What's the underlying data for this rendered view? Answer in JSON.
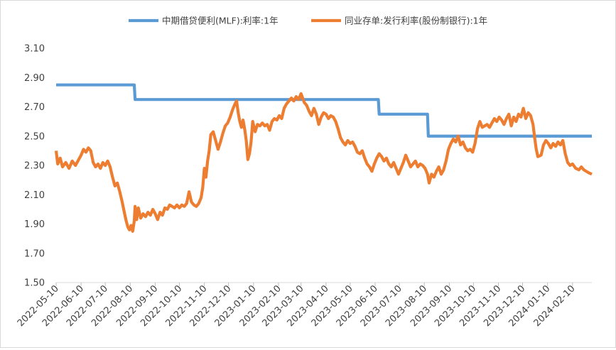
{
  "chart_data": {
    "type": "line",
    "title": "",
    "xlabel": "",
    "ylabel": "",
    "ylim": [
      1.5,
      3.1
    ],
    "yticks": [
      "1.50",
      "1.70",
      "1.90",
      "2.10",
      "2.30",
      "2.50",
      "2.70",
      "2.90",
      "3.10"
    ],
    "xticks": [
      "2022-05-10",
      "2022-06-10",
      "2022-07-10",
      "2022-08-10",
      "2022-09-10",
      "2022-10-10",
      "2022-11-10",
      "2022-12-10",
      "2023-01-10",
      "2023-02-10",
      "2023-03-10",
      "2023-04-10",
      "2023-05-10",
      "2023-06-10",
      "2023-07-10",
      "2023-08-10",
      "2023-09-10",
      "2023-10-10",
      "2023-11-10",
      "2023-12-10",
      "2024-01-10",
      "2024-02-10"
    ],
    "xlim": [
      "2022-05-10",
      "2024-03-05"
    ],
    "grid": false,
    "legend_position": "top",
    "series": [
      {
        "name": "中期借贷便利(MLF):利率:1年",
        "color": "#5B9BD5",
        "points": [
          [
            "2022-05-10",
            2.85
          ],
          [
            "2022-08-15",
            2.85
          ],
          [
            "2022-08-16",
            2.75
          ],
          [
            "2023-06-14",
            2.75
          ],
          [
            "2023-06-15",
            2.65
          ],
          [
            "2023-08-14",
            2.65
          ],
          [
            "2023-08-15",
            2.5
          ],
          [
            "2024-03-05",
            2.5
          ]
        ]
      },
      {
        "name": "同业存单:发行利率(股份制银行):1年",
        "color": "#ED7D31",
        "points": [
          [
            "2022-05-10",
            2.4
          ],
          [
            "2022-05-12",
            2.31
          ],
          [
            "2022-05-15",
            2.35
          ],
          [
            "2022-05-18",
            2.29
          ],
          [
            "2022-05-22",
            2.32
          ],
          [
            "2022-05-26",
            2.28
          ],
          [
            "2022-05-30",
            2.33
          ],
          [
            "2022-06-03",
            2.3
          ],
          [
            "2022-06-07",
            2.34
          ],
          [
            "2022-06-10",
            2.37
          ],
          [
            "2022-06-13",
            2.41
          ],
          [
            "2022-06-16",
            2.39
          ],
          [
            "2022-06-19",
            2.42
          ],
          [
            "2022-06-22",
            2.4
          ],
          [
            "2022-06-25",
            2.32
          ],
          [
            "2022-06-28",
            2.29
          ],
          [
            "2022-07-01",
            2.31
          ],
          [
            "2022-07-04",
            2.28
          ],
          [
            "2022-07-07",
            2.32
          ],
          [
            "2022-07-10",
            2.3
          ],
          [
            "2022-07-13",
            2.33
          ],
          [
            "2022-07-16",
            2.29
          ],
          [
            "2022-07-19",
            2.22
          ],
          [
            "2022-07-22",
            2.16
          ],
          [
            "2022-07-25",
            2.18
          ],
          [
            "2022-07-28",
            2.12
          ],
          [
            "2022-07-31",
            2.05
          ],
          [
            "2022-08-03",
            1.97
          ],
          [
            "2022-08-05",
            1.92
          ],
          [
            "2022-08-07",
            1.88
          ],
          [
            "2022-08-09",
            1.86
          ],
          [
            "2022-08-11",
            1.89
          ],
          [
            "2022-08-13",
            1.85
          ],
          [
            "2022-08-15",
            1.92
          ],
          [
            "2022-08-16",
            2.02
          ],
          [
            "2022-08-18",
            1.93
          ],
          [
            "2022-08-20",
            2.01
          ],
          [
            "2022-08-23",
            1.94
          ],
          [
            "2022-08-26",
            1.97
          ],
          [
            "2022-08-29",
            1.95
          ],
          [
            "2022-09-01",
            1.98
          ],
          [
            "2022-09-04",
            1.96
          ],
          [
            "2022-09-07",
            2.0
          ],
          [
            "2022-09-10",
            1.97
          ],
          [
            "2022-09-13",
            1.93
          ],
          [
            "2022-09-16",
            1.98
          ],
          [
            "2022-09-19",
            1.96
          ],
          [
            "2022-09-22",
            2.01
          ],
          [
            "2022-09-25",
            2.0
          ],
          [
            "2022-09-28",
            2.03
          ],
          [
            "2022-10-01",
            2.02
          ],
          [
            "2022-10-04",
            2.01
          ],
          [
            "2022-10-07",
            2.03
          ],
          [
            "2022-10-10",
            2.01
          ],
          [
            "2022-10-13",
            2.03
          ],
          [
            "2022-10-16",
            2.02
          ],
          [
            "2022-10-19",
            2.04
          ],
          [
            "2022-10-22",
            2.12
          ],
          [
            "2022-10-25",
            2.05
          ],
          [
            "2022-10-28",
            2.03
          ],
          [
            "2022-10-31",
            2.02
          ],
          [
            "2022-11-03",
            2.04
          ],
          [
            "2022-11-06",
            2.08
          ],
          [
            "2022-11-08",
            2.15
          ],
          [
            "2022-11-10",
            2.28
          ],
          [
            "2022-11-12",
            2.22
          ],
          [
            "2022-11-14",
            2.33
          ],
          [
            "2022-11-16",
            2.4
          ],
          [
            "2022-11-18",
            2.51
          ],
          [
            "2022-11-21",
            2.53
          ],
          [
            "2022-11-24",
            2.47
          ],
          [
            "2022-11-27",
            2.41
          ],
          [
            "2022-11-30",
            2.46
          ],
          [
            "2022-12-03",
            2.52
          ],
          [
            "2022-12-06",
            2.57
          ],
          [
            "2022-12-09",
            2.59
          ],
          [
            "2022-12-12",
            2.63
          ],
          [
            "2022-12-15",
            2.68
          ],
          [
            "2022-12-18",
            2.72
          ],
          [
            "2022-12-20",
            2.74
          ],
          [
            "2022-12-22",
            2.66
          ],
          [
            "2022-12-24",
            2.6
          ],
          [
            "2022-12-26",
            2.56
          ],
          [
            "2022-12-28",
            2.61
          ],
          [
            "2022-12-30",
            2.55
          ],
          [
            "2023-01-01",
            2.47
          ],
          [
            "2023-01-03",
            2.34
          ],
          [
            "2023-01-05",
            2.38
          ],
          [
            "2023-01-07",
            2.46
          ],
          [
            "2023-01-09",
            2.6
          ],
          [
            "2023-01-12",
            2.53
          ],
          [
            "2023-01-15",
            2.58
          ],
          [
            "2023-01-18",
            2.57
          ],
          [
            "2023-01-21",
            2.59
          ],
          [
            "2023-01-24",
            2.57
          ],
          [
            "2023-01-27",
            2.58
          ],
          [
            "2023-01-30",
            2.54
          ],
          [
            "2023-02-02",
            2.6
          ],
          [
            "2023-02-05",
            2.62
          ],
          [
            "2023-02-08",
            2.61
          ],
          [
            "2023-02-11",
            2.64
          ],
          [
            "2023-02-14",
            2.62
          ],
          [
            "2023-02-17",
            2.69
          ],
          [
            "2023-02-20",
            2.72
          ],
          [
            "2023-02-23",
            2.74
          ],
          [
            "2023-02-26",
            2.76
          ],
          [
            "2023-03-01",
            2.74
          ],
          [
            "2023-03-04",
            2.77
          ],
          [
            "2023-03-07",
            2.75
          ],
          [
            "2023-03-10",
            2.79
          ],
          [
            "2023-03-12",
            2.76
          ],
          [
            "2023-03-14",
            2.73
          ],
          [
            "2023-03-17",
            2.71
          ],
          [
            "2023-03-20",
            2.67
          ],
          [
            "2023-03-23",
            2.64
          ],
          [
            "2023-03-26",
            2.69
          ],
          [
            "2023-03-29",
            2.65
          ],
          [
            "2023-04-01",
            2.58
          ],
          [
            "2023-04-04",
            2.63
          ],
          [
            "2023-04-07",
            2.66
          ],
          [
            "2023-04-10",
            2.65
          ],
          [
            "2023-04-13",
            2.62
          ],
          [
            "2023-04-16",
            2.64
          ],
          [
            "2023-04-19",
            2.63
          ],
          [
            "2023-04-22",
            2.6
          ],
          [
            "2023-04-25",
            2.55
          ],
          [
            "2023-04-28",
            2.49
          ],
          [
            "2023-05-01",
            2.46
          ],
          [
            "2023-05-04",
            2.44
          ],
          [
            "2023-05-07",
            2.47
          ],
          [
            "2023-05-10",
            2.45
          ],
          [
            "2023-05-13",
            2.46
          ],
          [
            "2023-05-16",
            2.43
          ],
          [
            "2023-05-19",
            2.39
          ],
          [
            "2023-05-22",
            2.38
          ],
          [
            "2023-05-25",
            2.4
          ],
          [
            "2023-05-28",
            2.35
          ],
          [
            "2023-05-31",
            2.31
          ],
          [
            "2023-06-03",
            2.29
          ],
          [
            "2023-06-06",
            2.26
          ],
          [
            "2023-06-09",
            2.31
          ],
          [
            "2023-06-12",
            2.35
          ],
          [
            "2023-06-15",
            2.38
          ],
          [
            "2023-06-18",
            2.36
          ],
          [
            "2023-06-21",
            2.33
          ],
          [
            "2023-06-24",
            2.35
          ],
          [
            "2023-06-27",
            2.31
          ],
          [
            "2023-06-30",
            2.29
          ],
          [
            "2023-07-03",
            2.32
          ],
          [
            "2023-07-06",
            2.28
          ],
          [
            "2023-07-09",
            2.24
          ],
          [
            "2023-07-12",
            2.28
          ],
          [
            "2023-07-15",
            2.32
          ],
          [
            "2023-07-18",
            2.37
          ],
          [
            "2023-07-21",
            2.33
          ],
          [
            "2023-07-24",
            2.29
          ],
          [
            "2023-07-27",
            2.31
          ],
          [
            "2023-07-30",
            2.33
          ],
          [
            "2023-08-02",
            2.29
          ],
          [
            "2023-08-05",
            2.31
          ],
          [
            "2023-08-08",
            2.3
          ],
          [
            "2023-08-11",
            2.28
          ],
          [
            "2023-08-14",
            2.24
          ],
          [
            "2023-08-16",
            2.18
          ],
          [
            "2023-08-19",
            2.24
          ],
          [
            "2023-08-22",
            2.22
          ],
          [
            "2023-08-25",
            2.26
          ],
          [
            "2023-08-28",
            2.29
          ],
          [
            "2023-08-31",
            2.24
          ],
          [
            "2023-09-03",
            2.27
          ],
          [
            "2023-09-06",
            2.33
          ],
          [
            "2023-09-09",
            2.41
          ],
          [
            "2023-09-12",
            2.45
          ],
          [
            "2023-09-15",
            2.48
          ],
          [
            "2023-09-18",
            2.46
          ],
          [
            "2023-09-21",
            2.5
          ],
          [
            "2023-09-24",
            2.44
          ],
          [
            "2023-09-27",
            2.46
          ],
          [
            "2023-09-30",
            2.42
          ],
          [
            "2023-10-03",
            2.4
          ],
          [
            "2023-10-06",
            2.41
          ],
          [
            "2023-10-09",
            2.39
          ],
          [
            "2023-10-12",
            2.45
          ],
          [
            "2023-10-15",
            2.55
          ],
          [
            "2023-10-18",
            2.6
          ],
          [
            "2023-10-21",
            2.56
          ],
          [
            "2023-10-24",
            2.57
          ],
          [
            "2023-10-27",
            2.58
          ],
          [
            "2023-10-30",
            2.56
          ],
          [
            "2023-11-02",
            2.59
          ],
          [
            "2023-11-05",
            2.62
          ],
          [
            "2023-11-08",
            2.6
          ],
          [
            "2023-11-11",
            2.63
          ],
          [
            "2023-11-14",
            2.61
          ],
          [
            "2023-11-17",
            2.58
          ],
          [
            "2023-11-20",
            2.62
          ],
          [
            "2023-11-23",
            2.65
          ],
          [
            "2023-11-26",
            2.57
          ],
          [
            "2023-11-29",
            2.63
          ],
          [
            "2023-12-02",
            2.6
          ],
          [
            "2023-12-05",
            2.65
          ],
          [
            "2023-12-08",
            2.63
          ],
          [
            "2023-12-11",
            2.69
          ],
          [
            "2023-12-14",
            2.62
          ],
          [
            "2023-12-17",
            2.66
          ],
          [
            "2023-12-20",
            2.64
          ],
          [
            "2023-12-23",
            2.58
          ],
          [
            "2023-12-25",
            2.49
          ],
          [
            "2023-12-27",
            2.41
          ],
          [
            "2023-12-29",
            2.36
          ],
          [
            "2024-01-02",
            2.37
          ],
          [
            "2024-01-05",
            2.44
          ],
          [
            "2024-01-08",
            2.47
          ],
          [
            "2024-01-11",
            2.45
          ],
          [
            "2024-01-14",
            2.42
          ],
          [
            "2024-01-17",
            2.45
          ],
          [
            "2024-01-20",
            2.43
          ],
          [
            "2024-01-23",
            2.46
          ],
          [
            "2024-01-26",
            2.44
          ],
          [
            "2024-01-29",
            2.47
          ],
          [
            "2024-02-01",
            2.38
          ],
          [
            "2024-02-04",
            2.32
          ],
          [
            "2024-02-07",
            2.3
          ],
          [
            "2024-02-10",
            2.31
          ],
          [
            "2024-02-14",
            2.28
          ],
          [
            "2024-02-18",
            2.27
          ],
          [
            "2024-02-21",
            2.29
          ],
          [
            "2024-02-24",
            2.27
          ],
          [
            "2024-02-27",
            2.26
          ],
          [
            "2024-03-01",
            2.25
          ],
          [
            "2024-03-05",
            2.24
          ]
        ]
      }
    ]
  }
}
